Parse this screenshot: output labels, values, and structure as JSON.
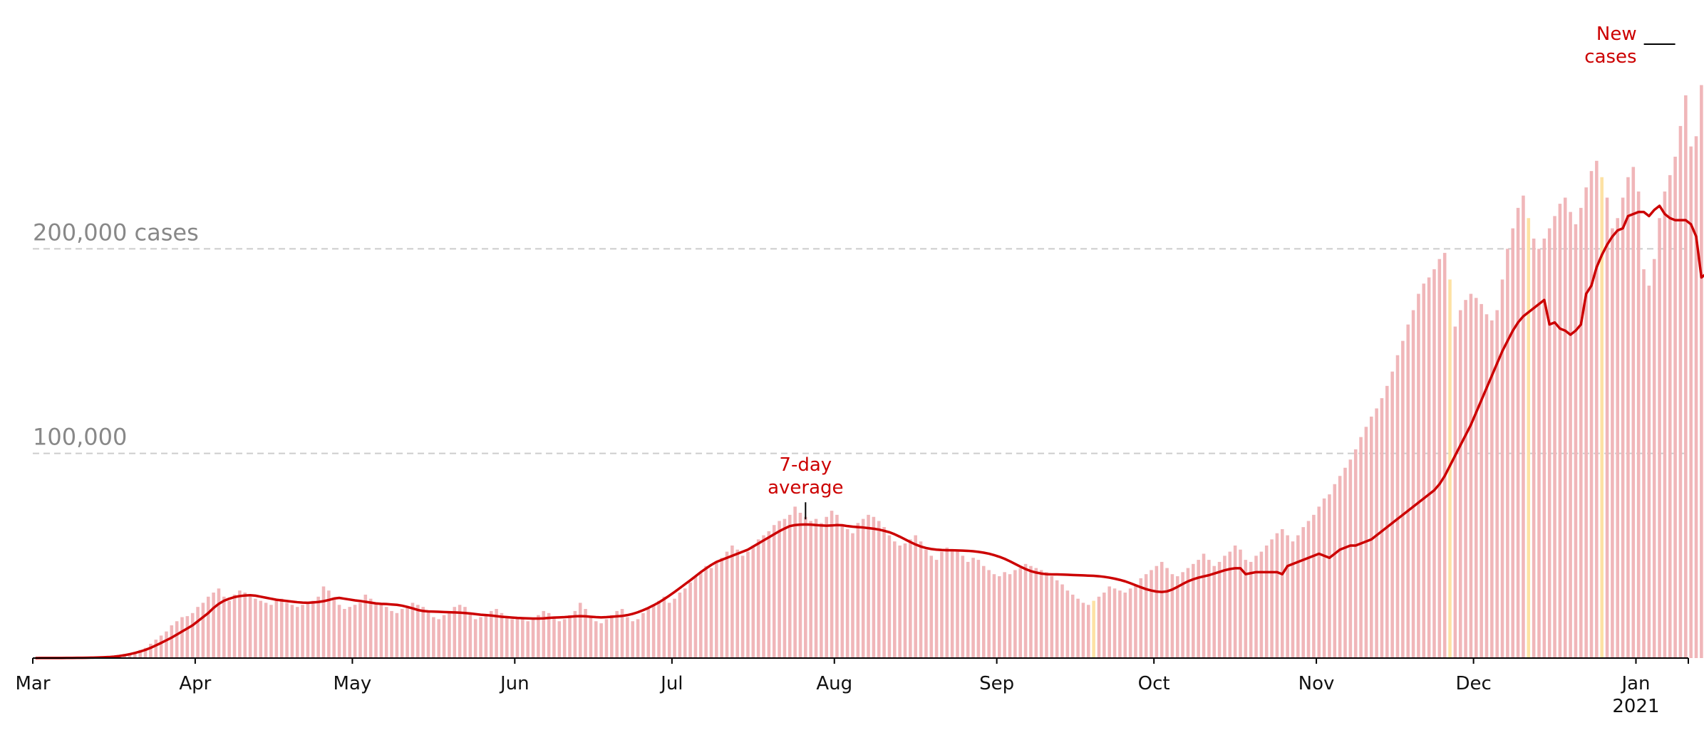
{
  "chart_data": {
    "type": "bar",
    "title": "",
    "xlabel": "",
    "ylabel": "",
    "ylim": [
      0,
      300000
    ],
    "grid": true,
    "colors": {
      "bar": "#f0b6b9",
      "bar_highlight": "#fde2a4",
      "line": "#cc0000",
      "gridline": "#cccccc",
      "gridlabel": "#888888"
    },
    "gridlines": [
      {
        "value": 100000,
        "label": "100,000"
      },
      {
        "value": 200000,
        "label": "200,000 cases"
      }
    ],
    "x_ticks": [
      {
        "date": "2020-03-01",
        "label": "Mar",
        "sublabel": ""
      },
      {
        "date": "2020-04-01",
        "label": "Apr",
        "sublabel": ""
      },
      {
        "date": "2020-05-01",
        "label": "May",
        "sublabel": ""
      },
      {
        "date": "2020-06-01",
        "label": "Jun",
        "sublabel": ""
      },
      {
        "date": "2020-07-01",
        "label": "Jul",
        "sublabel": ""
      },
      {
        "date": "2020-08-01",
        "label": "Aug",
        "sublabel": ""
      },
      {
        "date": "2020-09-01",
        "label": "Sep",
        "sublabel": ""
      },
      {
        "date": "2020-10-01",
        "label": "Oct",
        "sublabel": ""
      },
      {
        "date": "2020-11-01",
        "label": "Nov",
        "sublabel": ""
      },
      {
        "date": "2020-12-01",
        "label": "Dec",
        "sublabel": ""
      },
      {
        "date": "2021-01-01",
        "label": "Jan",
        "sublabel": "2021"
      }
    ],
    "annotations": [
      {
        "text": [
          "7-day",
          "average"
        ],
        "date": "2020-07-26",
        "value": 65000,
        "target": "line"
      },
      {
        "text": [
          "New",
          "cases"
        ],
        "date": "2021-01-08",
        "value": 300000,
        "target": "bars"
      }
    ],
    "series": [
      {
        "name": "New cases",
        "kind": "bar",
        "start": "2020-03-01",
        "values": [
          50,
          40,
          70,
          80,
          100,
          200,
          180,
          300,
          350,
          400,
          500,
          600,
          700,
          800,
          900,
          1000,
          1200,
          2000,
          2500,
          3000,
          4000,
          5000,
          7000,
          9000,
          11000,
          13000,
          16000,
          18000,
          20000,
          20500,
          22000,
          25000,
          27000,
          30000,
          32000,
          34000,
          30000,
          28000,
          31000,
          33000,
          32000,
          30000,
          29000,
          28000,
          27000,
          26000,
          28000,
          29000,
          27000,
          26000,
          25000,
          26000,
          27000,
          28000,
          30000,
          35000,
          33000,
          29000,
          26000,
          24000,
          25000,
          26000,
          27000,
          31000,
          29000,
          27000,
          26000,
          25000,
          23000,
          22000,
          24000,
          25000,
          27000,
          26000,
          25000,
          23000,
          20000,
          19000,
          21000,
          22000,
          25000,
          26000,
          25000,
          22000,
          19000,
          20000,
          21000,
          23000,
          24000,
          22000,
          20000,
          19000,
          20000,
          19000,
          18000,
          19000,
          21000,
          23000,
          22000,
          20000,
          18000,
          19000,
          21000,
          23000,
          27000,
          24000,
          20000,
          18000,
          17000,
          19000,
          21000,
          23000,
          24000,
          20000,
          18000,
          19000,
          22000,
          24000,
          26000,
          28000,
          30000,
          27000,
          29000,
          32000,
          34000,
          37000,
          40000,
          42000,
          45000,
          44000,
          47000,
          49000,
          52000,
          55000,
          53000,
          50000,
          52000,
          55000,
          58000,
          60000,
          62000,
          65000,
          67000,
          68000,
          70000,
          74000,
          71000,
          69000,
          67000,
          68000,
          66000,
          69000,
          72000,
          70000,
          65000,
          63000,
          61000,
          66000,
          68000,
          70000,
          69000,
          67000,
          64000,
          60000,
          57000,
          55000,
          56000,
          58000,
          60000,
          57000,
          53000,
          50000,
          48000,
          52000,
          54000,
          53000,
          52000,
          50000,
          47000,
          49000,
          48000,
          45000,
          43000,
          41000,
          40000,
          42000,
          41000,
          43000,
          44000,
          46000,
          45000,
          44000,
          43000,
          42000,
          40000,
          38000,
          36000,
          33000,
          31000,
          29000,
          27000,
          26000,
          28000,
          30000,
          32000,
          35000,
          34000,
          33000,
          32000,
          34000,
          36000,
          39000,
          41000,
          43000,
          45000,
          47000,
          44000,
          41000,
          40000,
          42000,
          44000,
          46000,
          48000,
          51000,
          48000,
          45000,
          47000,
          50000,
          52000,
          55000,
          53000,
          48000,
          47000,
          50000,
          52000,
          55000,
          58000,
          61000,
          63000,
          60000,
          57000,
          60000,
          64000,
          67000,
          70000,
          74000,
          78000,
          80000,
          85000,
          89000,
          93000,
          97000,
          102000,
          108000,
          113000,
          118000,
          122000,
          127000,
          133000,
          140000,
          148000,
          155000,
          163000,
          170000,
          178000,
          183000,
          186000,
          190000,
          195000,
          198000,
          185000,
          162000,
          170000,
          175000,
          178000,
          176000,
          173000,
          168000,
          165000,
          170000,
          185000,
          200000,
          210000,
          220000,
          226000,
          215000,
          205000,
          200000,
          205000,
          210000,
          216000,
          222000,
          225000,
          218000,
          212000,
          220000,
          230000,
          238000,
          243000,
          235000,
          225000,
          210000,
          215000,
          225000,
          235000,
          240000,
          228000,
          190000,
          182000,
          195000,
          215000,
          228000,
          236000,
          245000,
          260000,
          275000,
          250000,
          255000,
          280000,
          290000,
          301000,
          255000,
          245000
        ],
        "highlighted": [
          "2020-09-19",
          "2020-11-26",
          "2020-12-11",
          "2020-12-25"
        ]
      },
      {
        "name": "7-day average",
        "kind": "line",
        "start": "2020-03-01",
        "values": [
          20,
          25,
          30,
          40,
          50,
          60,
          70,
          90,
          110,
          140,
          180,
          230,
          300,
          400,
          500,
          700,
          1000,
          1400,
          1900,
          2500,
          3200,
          4000,
          5000,
          6200,
          7400,
          8700,
          10000,
          11500,
          13000,
          14500,
          16000,
          18000,
          20000,
          22000,
          24500,
          26500,
          28000,
          29000,
          29800,
          30300,
          30600,
          30700,
          30500,
          30000,
          29500,
          29000,
          28500,
          28200,
          27900,
          27600,
          27300,
          27100,
          27000,
          27200,
          27400,
          27800,
          28400,
          29100,
          29400,
          29000,
          28600,
          28200,
          27900,
          27500,
          27100,
          26700,
          26500,
          26400,
          26200,
          26000,
          25600,
          25000,
          24300,
          23500,
          23000,
          22800,
          22700,
          22600,
          22500,
          22400,
          22300,
          22200,
          22000,
          21800,
          21500,
          21200,
          21000,
          20800,
          20500,
          20200,
          20000,
          19800,
          19600,
          19500,
          19400,
          19300,
          19300,
          19400,
          19600,
          19800,
          19900,
          20000,
          20200,
          20400,
          20500,
          20400,
          20200,
          20000,
          19900,
          20000,
          20200,
          20400,
          20600,
          21000,
          21600,
          22400,
          23400,
          24500,
          25800,
          27200,
          28800,
          30500,
          32300,
          34200,
          36100,
          38000,
          40000,
          42000,
          43800,
          45500,
          47000,
          48000,
          49000,
          50000,
          51000,
          52000,
          53000,
          54500,
          56000,
          57500,
          59000,
          60500,
          62000,
          63300,
          64500,
          65000,
          65200,
          65300,
          65200,
          65000,
          64800,
          64700,
          64800,
          65000,
          64900,
          64500,
          64200,
          64000,
          63800,
          63500,
          63200,
          62800,
          62200,
          61500,
          60500,
          59300,
          58000,
          56700,
          55500,
          54500,
          53800,
          53300,
          53000,
          52800,
          52700,
          52700,
          52600,
          52500,
          52400,
          52200,
          51900,
          51500,
          51000,
          50300,
          49500,
          48500,
          47300,
          46000,
          44700,
          43500,
          42500,
          41800,
          41300,
          41000,
          40900,
          40900,
          40800,
          40700,
          40600,
          40500,
          40400,
          40300,
          40200,
          40000,
          39700,
          39300,
          38800,
          38200,
          37500,
          36600,
          35600,
          34600,
          33700,
          33000,
          32500,
          32300,
          32600,
          33500,
          34800,
          36200,
          37500,
          38500,
          39300,
          39900,
          40500,
          41300,
          42100,
          42900,
          43500,
          43900,
          43900,
          41000,
          41500,
          42000,
          42000,
          42000,
          42000,
          42000,
          41000,
          45000,
          46000,
          47000,
          48000,
          49000,
          50000,
          51000,
          50000,
          49000,
          51000,
          53000,
          54000,
          55000,
          55000,
          56000,
          57000,
          58000,
          60000,
          62000,
          64000,
          66000,
          68000,
          70000,
          72000,
          74000,
          76000,
          78000,
          80000,
          82000,
          85000,
          89000,
          94000,
          99000,
          104000,
          109000,
          114000,
          120000,
          126000,
          132000,
          138000,
          144000,
          150000,
          155000,
          160000,
          164000,
          167000,
          169000,
          171000,
          173000,
          175000,
          163000,
          164000,
          161000,
          160000,
          158000,
          160000,
          163000,
          178000,
          182000,
          191000,
          197000,
          202000,
          206000,
          209000,
          210000,
          216000,
          217000,
          218000,
          218000,
          216000,
          219000,
          221000,
          217000,
          215000,
          214000,
          214000,
          214000,
          212000,
          206000,
          186000,
          188000,
          184000,
          182000,
          182000,
          182000,
          186000,
          194000,
          205000,
          213000,
          221000,
          226000,
          231000,
          241000,
          259000,
          254000
        ]
      }
    ]
  }
}
